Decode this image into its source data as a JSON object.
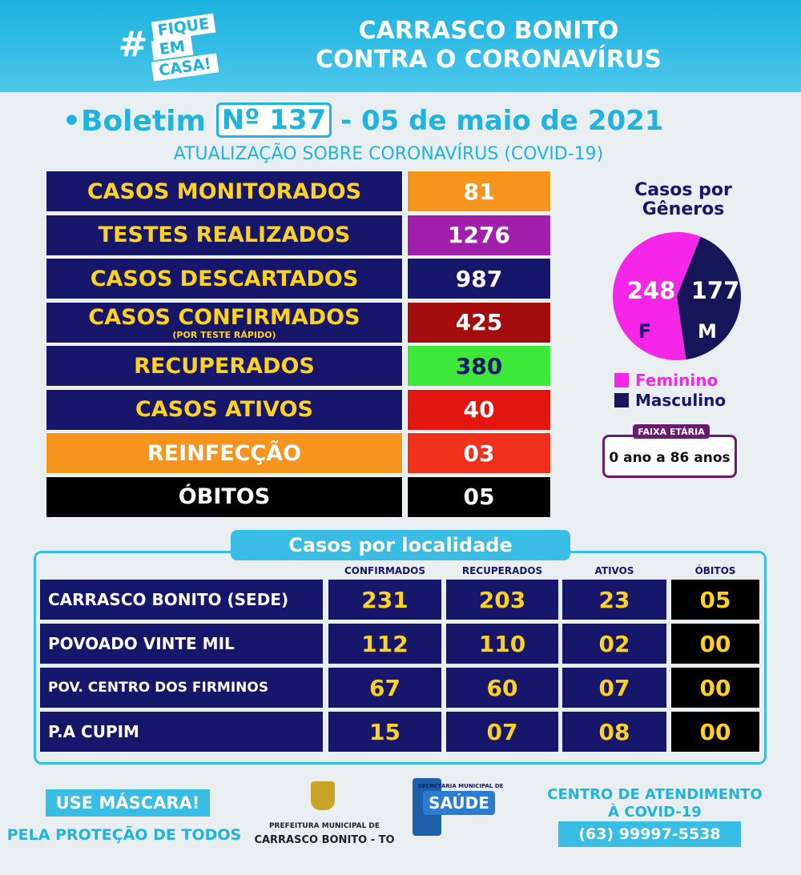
{
  "header": {
    "hashtag": {
      "symbol": "#",
      "lines": [
        "FIQUE",
        "EM",
        "CASA!"
      ]
    },
    "title_lines": [
      "CARRASCO BONITO",
      "CONTRA O CORONAVÍRUS"
    ]
  },
  "bulletin": {
    "prefix": "•Boletim",
    "number": "Nº 137",
    "date": "- 05 de maio de 2021",
    "subtitle": "ATUALIZAÇÃO SOBRE CORONAVÍRUS (COVID-19)"
  },
  "stats": [
    {
      "label": "CASOS MONITORADOS",
      "value": "81",
      "label_bg": "#16166a",
      "value_bg": "#f7941d"
    },
    {
      "label": "TESTES REALIZADOS",
      "value": "1276",
      "label_bg": "#16166a",
      "value_bg": "#a21fab"
    },
    {
      "label": "CASOS DESCARTADOS",
      "value": "987",
      "label_bg": "#16166a",
      "value_bg": "#16166a"
    },
    {
      "label": "CASOS CONFIRMADOS",
      "note": "(POR TESTE RÁPIDO)",
      "value": "425",
      "label_bg": "#16166a",
      "value_bg": "#a30d0d"
    },
    {
      "label": "RECUPERADOS",
      "value": "380",
      "label_bg": "#16166a",
      "value_bg": "#3ee83a"
    },
    {
      "label": "CASOS ATIVOS",
      "value": "40",
      "label_bg": "#16166a",
      "value_bg": "#e3160f"
    },
    {
      "label": "REINFECÇÃO",
      "value": "03",
      "label_bg": "#f7941d",
      "value_bg": "#f0301b"
    },
    {
      "label": "ÓBITOS",
      "value": "05",
      "label_bg": "#000000",
      "value_bg": "#000000"
    }
  ],
  "gender": {
    "title_lines": [
      "Casos por",
      "Gêneros"
    ],
    "series": [
      {
        "name": "Feminino",
        "letter": "F",
        "value": 248,
        "color": "#f626e8"
      },
      {
        "name": "Masculino",
        "letter": "M",
        "value": 177,
        "color": "#16165a"
      }
    ]
  },
  "age": {
    "label": "FAIXA ETÁRIA",
    "value": "0 ano a 86 anos"
  },
  "locality": {
    "title": "Casos por localidade",
    "columns": [
      "CONFIRMADOS",
      "RECUPERADOS",
      "ATIVOS",
      "ÓBITOS"
    ],
    "rows": [
      {
        "name": "CARRASCO BONITO (SEDE)",
        "values": [
          "231",
          "203",
          "23",
          "05"
        ]
      },
      {
        "name": "POVOADO VINTE MIL",
        "values": [
          "112",
          "110",
          "02",
          "00"
        ]
      },
      {
        "name": "POV. CENTRO DOS FIRMINOS",
        "values": [
          "67",
          "60",
          "07",
          "00"
        ]
      },
      {
        "name": "P.A CUPIM",
        "values": [
          "15",
          "07",
          "08",
          "00"
        ]
      }
    ]
  },
  "footer": {
    "mask": "USE MÁSCARA!",
    "protection": "PELA PROTEÇÃO DE TODOS",
    "prefeitura": [
      "PREFEITURA MUNICIPAL DE",
      "CARRASCO BONITO - TO"
    ],
    "secretaria": [
      "SECRETARIA MUNICIPAL DE",
      "SAÚDE"
    ],
    "center": [
      "CENTRO DE ATENDIMENTO",
      "À COVID-19"
    ],
    "phone": "(63) 99997-5538"
  }
}
